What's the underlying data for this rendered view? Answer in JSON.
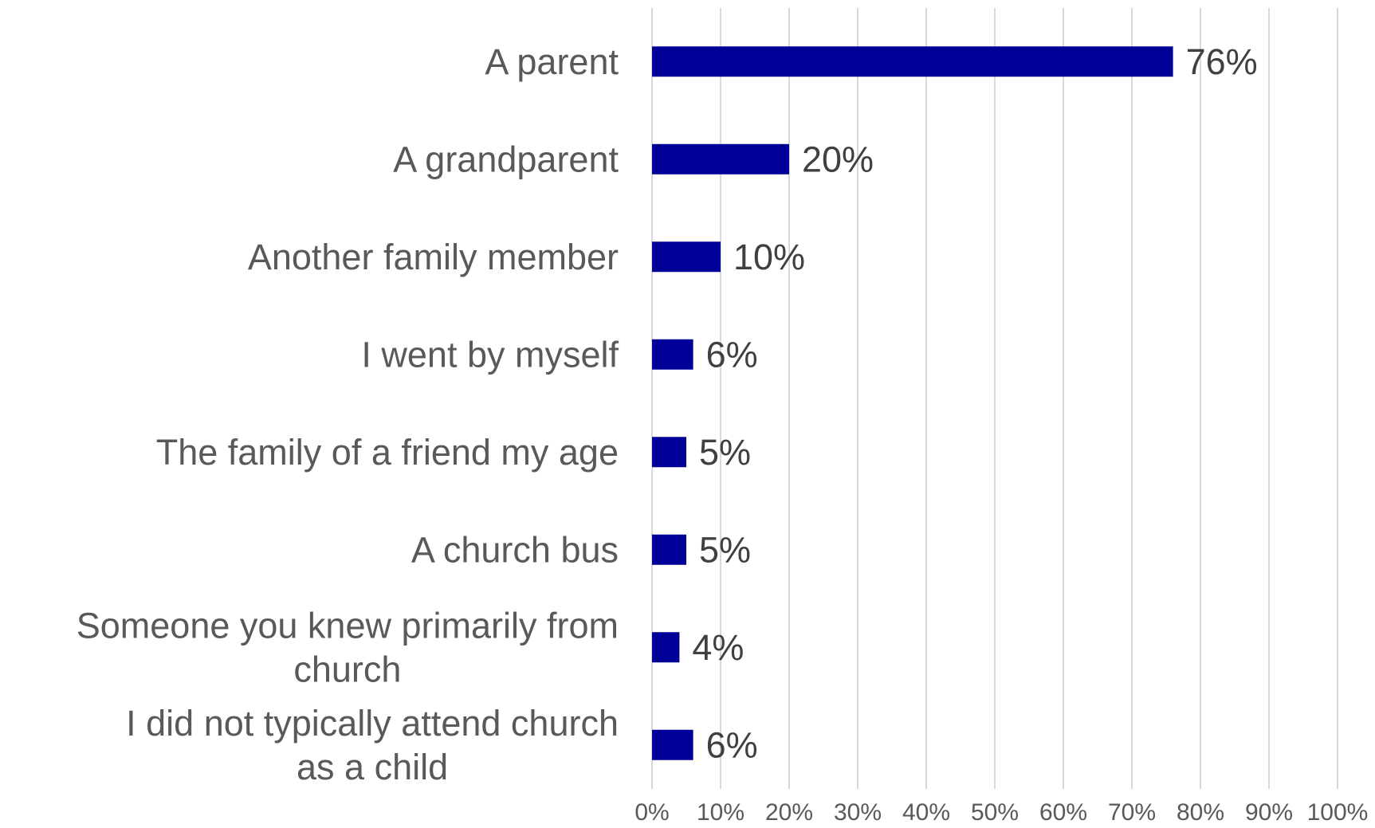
{
  "chart_data": {
    "type": "bar",
    "orientation": "horizontal",
    "categories": [
      "A parent",
      "A grandparent",
      "Another family member",
      "I went by myself",
      "The family of a friend my age",
      "A church bus",
      "Someone you knew primarily from church",
      "I did not typically attend church as a child"
    ],
    "values": [
      76,
      20,
      10,
      6,
      5,
      5,
      4,
      6
    ],
    "data_labels": [
      "76%",
      "20%",
      "10%",
      "6%",
      "5%",
      "5%",
      "4%",
      "6%"
    ],
    "xlim": [
      0,
      100
    ],
    "x_ticks": [
      0,
      10,
      20,
      30,
      40,
      50,
      60,
      70,
      80,
      90,
      100
    ],
    "x_tick_labels": [
      "0%",
      "10%",
      "20%",
      "30%",
      "40%",
      "50%",
      "60%",
      "70%",
      "80%",
      "90%",
      "100%"
    ],
    "grid": "vertical",
    "legend": "none",
    "bar_color": "#000099",
    "title": "",
    "xlabel": "",
    "ylabel": ""
  }
}
